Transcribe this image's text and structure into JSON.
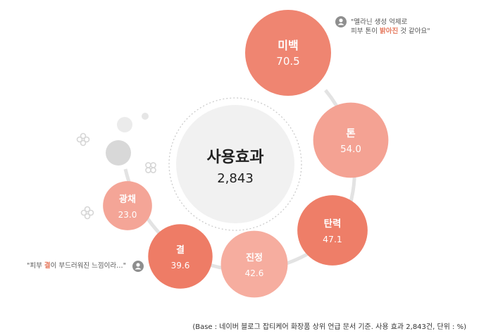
{
  "chart_data": {
    "type": "bubble",
    "center": {
      "label": "사용효과",
      "value": "2,843"
    },
    "items": [
      {
        "label": "미백",
        "value": 70.5,
        "color": "#ef8571"
      },
      {
        "label": "톤",
        "value": 54.0,
        "color": "#f4a293"
      },
      {
        "label": "탄력",
        "value": 47.1,
        "color": "#ee7e68"
      },
      {
        "label": "진정",
        "value": 42.6,
        "color": "#f6ad9f"
      },
      {
        "label": "결",
        "value": 39.6,
        "color": "#ee7c66"
      },
      {
        "label": "광채",
        "value": 23.0,
        "color": "#f4a597"
      }
    ]
  },
  "quotes": {
    "top": {
      "line1": "\"멜라닌 생성 억제로",
      "line2_pre": "피부 톤이 ",
      "line2_hl": "밝아진",
      "line2_post": " 것 같아요\""
    },
    "bottom": {
      "pre": "\"피부 ",
      "hl": "결",
      "post": "이 부드러워진 느낌이라…\""
    }
  },
  "footnote": "(Base : 네이버 블로그 잡티케어 화장품 상위 언급 문서 기준. 사용 효과 2,843건, 단위 : %)"
}
